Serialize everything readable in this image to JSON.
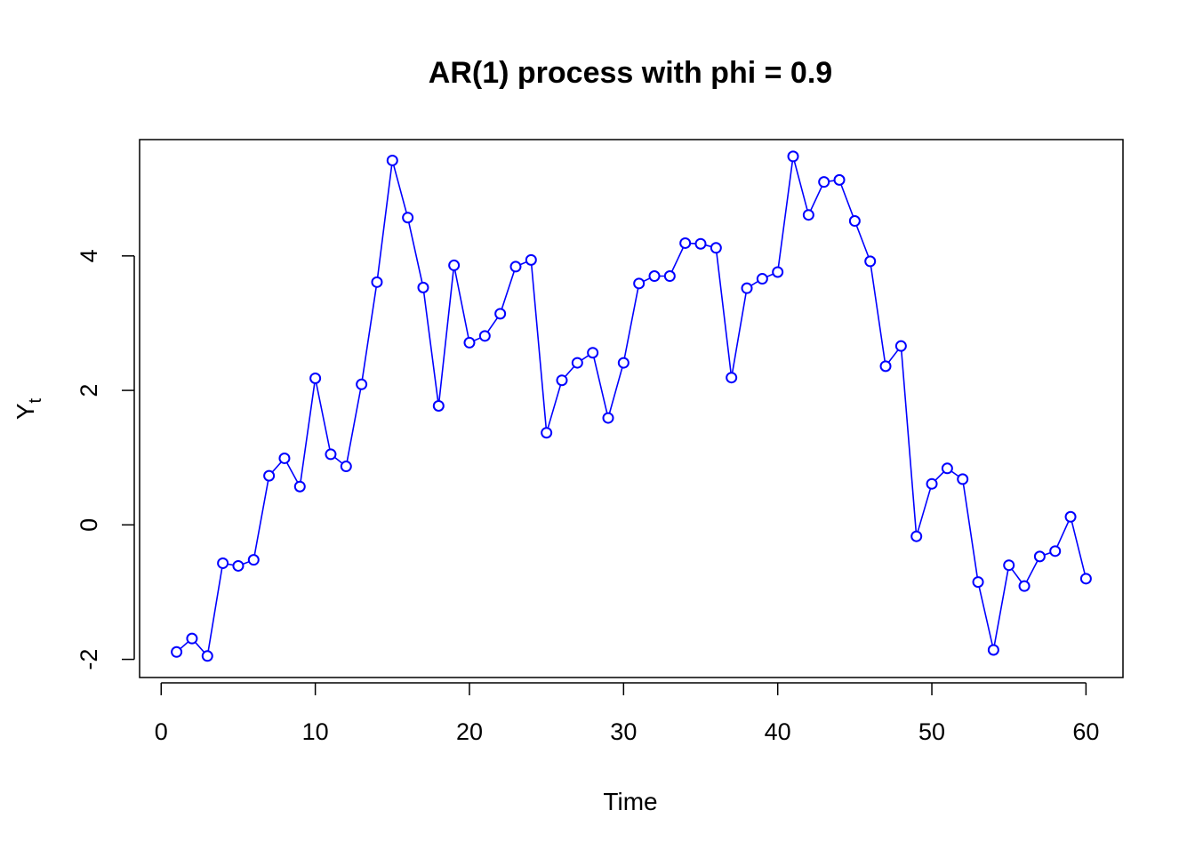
{
  "chart_data": {
    "type": "line",
    "title": "AR(1) process with phi = 0.9",
    "xlabel": "Time",
    "ylabel_main": "Y",
    "ylabel_sub": "t",
    "xlim": [
      -1.4,
      62.4
    ],
    "ylim": [
      -2.27,
      5.73
    ],
    "xticks": [
      0,
      10,
      20,
      30,
      40,
      50,
      60
    ],
    "yticks": [
      -2,
      0,
      2,
      4
    ],
    "line_color": "#0000ff",
    "marker": "open-circle",
    "grid": false,
    "series": [
      {
        "x": [
          1,
          2,
          3,
          4,
          5,
          6,
          7,
          8,
          9,
          10,
          11,
          12,
          13,
          14,
          15,
          16,
          17,
          18,
          19,
          20,
          21,
          22,
          23,
          24,
          25,
          26,
          27,
          28,
          29,
          30,
          31,
          32,
          33,
          34,
          35,
          36,
          37,
          38,
          39,
          40,
          41,
          42,
          43,
          44,
          45,
          46,
          47,
          48,
          49,
          50,
          51,
          52,
          53,
          54,
          55,
          56,
          57,
          58,
          59,
          60
        ],
        "values": [
          -1.89,
          -1.69,
          -1.95,
          -0.57,
          -0.61,
          -0.52,
          0.73,
          0.99,
          0.57,
          2.18,
          1.05,
          0.87,
          2.09,
          3.61,
          5.42,
          4.57,
          3.53,
          1.77,
          3.86,
          2.71,
          2.81,
          3.14,
          3.84,
          3.94,
          1.37,
          2.15,
          2.41,
          2.56,
          1.59,
          2.41,
          3.59,
          3.7,
          3.7,
          4.19,
          4.18,
          4.12,
          2.19,
          3.52,
          3.66,
          3.76,
          5.48,
          4.61,
          5.1,
          5.13,
          4.52,
          3.92,
          2.36,
          2.66,
          -0.17,
          0.61,
          0.84,
          0.68,
          -0.85,
          -1.86,
          -0.6,
          -0.91,
          -0.47,
          -0.39,
          0.12,
          -0.8
        ]
      }
    ]
  }
}
